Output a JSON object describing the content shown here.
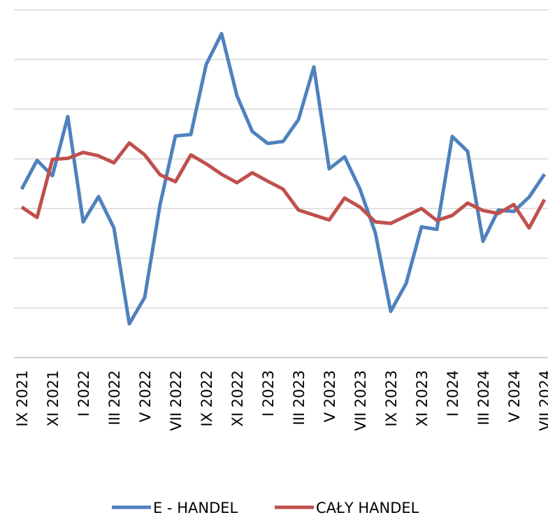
{
  "chart_data": {
    "type": "line",
    "categories": [
      "IX 2021",
      null,
      "XI 2021",
      null,
      "I 2022",
      null,
      "III 2022",
      null,
      "V 2022",
      null,
      "VII 2022",
      null,
      "IX 2022",
      null,
      "XI 2022",
      null,
      "I 2023",
      null,
      "III 2023",
      null,
      "V 2023",
      null,
      "VII 2023",
      null,
      "IX 2023",
      null,
      "XI 2023",
      null,
      "I 2024",
      null,
      "III 2024",
      null,
      "V 2024",
      null,
      "VII 2024"
    ],
    "series": [
      {
        "name": "E - HANDEL",
        "color": "#4f81bd",
        "values": [
          3.39,
          3.97,
          3.66,
          4.85,
          2.73,
          3.24,
          2.61,
          0.68,
          1.21,
          3.08,
          4.46,
          4.49,
          5.9,
          6.52,
          5.27,
          4.55,
          4.31,
          4.35,
          4.79,
          5.85,
          3.8,
          4.04,
          3.39,
          2.51,
          0.93,
          1.49,
          2.63,
          2.58,
          4.45,
          4.15,
          2.34,
          2.97,
          2.94,
          3.23,
          3.69
        ]
      },
      {
        "name": "CAŁY HANDEL",
        "color": "#c0504d",
        "values": [
          3.03,
          2.82,
          3.99,
          4.01,
          4.13,
          4.06,
          3.92,
          4.32,
          4.08,
          3.68,
          3.54,
          4.08,
          3.9,
          3.69,
          3.52,
          3.72,
          3.55,
          3.39,
          2.97,
          2.87,
          2.77,
          3.21,
          3.03,
          2.73,
          2.7,
          2.85,
          3.0,
          2.76,
          2.86,
          3.11,
          2.96,
          2.9,
          3.08,
          2.61,
          3.18
        ]
      }
    ],
    "ylim": [
      0,
      7
    ],
    "yticks": [
      0,
      1,
      2,
      3,
      4,
      5,
      6,
      7
    ],
    "grid": true,
    "legend": "bottom"
  }
}
